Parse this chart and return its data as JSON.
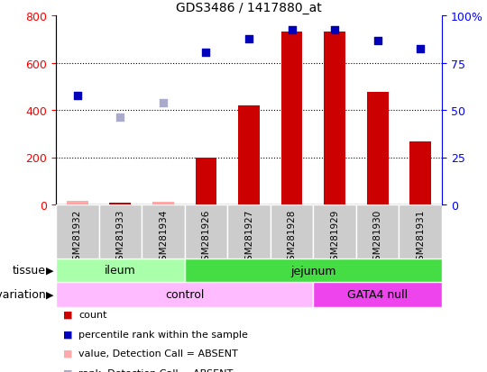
{
  "title": "GDS3486 / 1417880_at",
  "samples": [
    "GSM281932",
    "GSM281933",
    "GSM281934",
    "GSM281926",
    "GSM281927",
    "GSM281928",
    "GSM281929",
    "GSM281930",
    "GSM281931"
  ],
  "count_values": [
    15,
    8,
    12,
    200,
    420,
    730,
    730,
    475,
    265
  ],
  "count_absent": [
    true,
    false,
    true,
    false,
    false,
    false,
    false,
    false,
    false
  ],
  "percentile_values": [
    57.5,
    46.25,
    53.75,
    80.6,
    87.5,
    92.5,
    92.5,
    86.9,
    82.5
  ],
  "percentile_absent": [
    false,
    true,
    true,
    false,
    false,
    false,
    false,
    false,
    false
  ],
  "ylim_left": [
    0,
    800
  ],
  "ylim_right": [
    0,
    100
  ],
  "yticks_left": [
    0,
    200,
    400,
    600,
    800
  ],
  "yticks_right": [
    0,
    25,
    50,
    75,
    100
  ],
  "tissue_groups": [
    {
      "label": "ileum",
      "start": 0,
      "end": 3,
      "color": "#aaffaa"
    },
    {
      "label": "jejunum",
      "start": 3,
      "end": 9,
      "color": "#44dd44"
    }
  ],
  "genotype_groups": [
    {
      "label": "control",
      "start": 0,
      "end": 6,
      "color": "#ffbbff"
    },
    {
      "label": "GATA4 null",
      "start": 6,
      "end": 9,
      "color": "#ee44ee"
    }
  ],
  "bar_color": "#cc0000",
  "dot_color_present": "#0000bb",
  "dot_color_absent_count": "#ffaaaa",
  "dot_color_absent_rank": "#aaaacc",
  "sample_bg": "#cccccc",
  "legend_items": [
    {
      "color": "#cc0000",
      "label": "count"
    },
    {
      "color": "#0000bb",
      "label": "percentile rank within the sample"
    },
    {
      "color": "#ffaaaa",
      "label": "value, Detection Call = ABSENT"
    },
    {
      "color": "#aaaacc",
      "label": "rank, Detection Call = ABSENT"
    }
  ]
}
